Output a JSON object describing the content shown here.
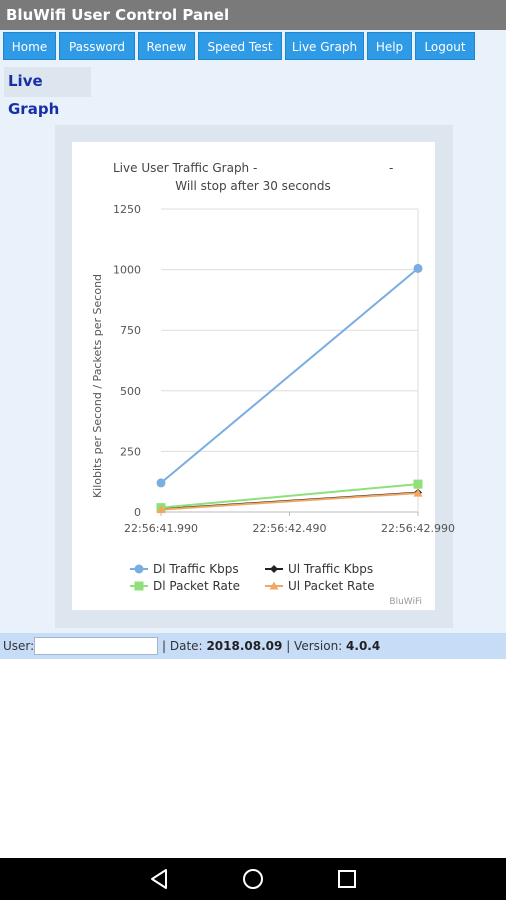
{
  "app": {
    "title": "BluWifi User Control Panel"
  },
  "nav": {
    "items": [
      {
        "label": "Home"
      },
      {
        "label": "Password"
      },
      {
        "label": "Renew"
      },
      {
        "label": "Speed Test"
      },
      {
        "label": "Live Graph"
      },
      {
        "label": "Help"
      },
      {
        "label": "Logout"
      }
    ]
  },
  "section": {
    "title": "Live Graph"
  },
  "chart_data": {
    "type": "line",
    "title": "Live User Traffic Graph -",
    "title_suffix": "-",
    "subtitle": "Will stop after 30 seconds",
    "ylabel": "Kilobits per Second / Packets per Second",
    "xlabel": "",
    "x": [
      "22:56:41.990",
      "22:56:42.990"
    ],
    "x_ticks": [
      "22:56:41.990",
      "22:56:42.490",
      "22:56:42.990"
    ],
    "ylim": [
      0,
      1250
    ],
    "y_ticks": [
      0,
      250,
      500,
      750,
      1000,
      1250
    ],
    "grid": true,
    "legend_position": "bottom",
    "credit": "BluWiFi",
    "series": [
      {
        "name": "Dl Traffic Kbps",
        "values": [
          120,
          1005
        ],
        "color": "#7aaee0",
        "marker": "circle"
      },
      {
        "name": "Ul Traffic Kbps",
        "values": [
          12,
          80
        ],
        "color": "#222222",
        "marker": "diamond"
      },
      {
        "name": "Dl Packet Rate",
        "values": [
          18,
          115
        ],
        "color": "#8fe07a",
        "marker": "square"
      },
      {
        "name": "Ul Packet Rate",
        "values": [
          10,
          78
        ],
        "color": "#f0a860",
        "marker": "triangle"
      }
    ]
  },
  "footer": {
    "user_label": "User:",
    "user_value": "",
    "date_label": "| Date:",
    "date_value": "2018.08.09",
    "version_label": "| Version:",
    "version_value": "4.0.4"
  },
  "android_nav": {
    "back": "back-icon",
    "home": "home-icon",
    "recents": "recents-icon"
  }
}
